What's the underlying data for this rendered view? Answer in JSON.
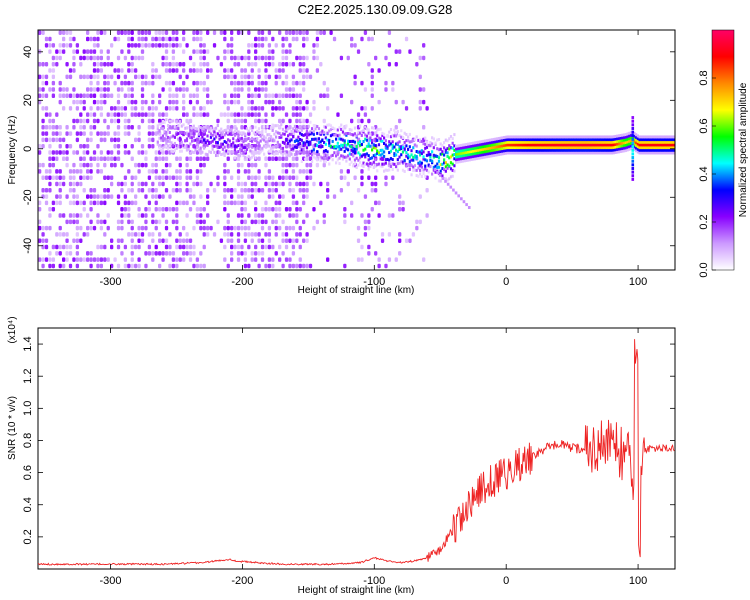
{
  "page": {
    "title": "C2E2.2025.130.09.09.G28"
  },
  "chart_data": [
    {
      "type": "heatmap",
      "xlabel": "Height of straight line (km)",
      "ylabel": "Frequency (Hz)",
      "xlim": [
        -355,
        128
      ],
      "ylim": [
        -50,
        49
      ],
      "xticks": [
        -300,
        -200,
        -100,
        0,
        100
      ],
      "yticks": [
        -40,
        -20,
        0,
        20,
        40
      ],
      "colorbar": {
        "label": "Normalized spectral amplitude",
        "range": [
          0,
          1
        ],
        "ticks": [
          0.0,
          0.2,
          0.4,
          0.6,
          0.8
        ],
        "tick_labels": [
          "0.0",
          "0.2",
          "0.4",
          "0.6",
          "0.8"
        ],
        "colormap": [
          "#ffffff",
          "#cc99ff",
          "#8800ff",
          "#0000ff",
          "#00ffff",
          "#00ff00",
          "#ffff00",
          "#ff8800",
          "#ff0000",
          "#ff0066"
        ]
      },
      "ridge": {
        "description_points_x": [
          -260,
          -240,
          -220,
          -200,
          -180,
          -160,
          -140,
          -120,
          -100,
          -80,
          -60,
          -50,
          -40,
          -30,
          -20,
          -10,
          0,
          20,
          40,
          60,
          80,
          90,
          95,
          100,
          128
        ],
        "center_freq": [
          5,
          4,
          3,
          1,
          3,
          3,
          2,
          1,
          -1,
          -2,
          -4,
          -6,
          -3,
          -2,
          -1,
          0,
          1,
          1,
          1,
          1,
          1,
          2,
          3,
          1,
          1
        ],
        "peak_amplitude": [
          0.15,
          0.2,
          0.25,
          0.2,
          0.1,
          0.3,
          0.4,
          0.45,
          0.5,
          0.45,
          0.4,
          0.55,
          0.6,
          0.65,
          0.7,
          0.75,
          0.85,
          0.9,
          0.92,
          0.93,
          0.9,
          0.7,
          0.75,
          0.9,
          0.9
        ]
      }
    },
    {
      "type": "line",
      "xlabel": "Height of straight line (km)",
      "ylabel": "SNR (10 * v/v)",
      "y_multiplier": "(x10⁴)",
      "xlim": [
        -355,
        128
      ],
      "ylim": [
        0,
        1.5
      ],
      "xticks": [
        -300,
        -200,
        -100,
        0,
        100
      ],
      "yticks": [
        0.2,
        0.4,
        0.6,
        0.8,
        1.0,
        1.2,
        1.4
      ],
      "ytick_labels": [
        "0.2",
        "0.4",
        "0.6",
        "0.8",
        "1.0",
        "1.2",
        "1.4"
      ],
      "color": "#ee2222",
      "series": [
        {
          "name": "",
          "x": [
            -355,
            -320,
            -290,
            -260,
            -230,
            -210,
            -205,
            -190,
            -170,
            -150,
            -130,
            -110,
            -100,
            -90,
            -80,
            -70,
            -60,
            -50,
            -40,
            -30,
            -20,
            -10,
            0,
            10,
            20,
            30,
            40,
            50,
            60,
            70,
            80,
            90,
            95,
            100,
            105,
            110,
            128
          ],
          "y": [
            0.03,
            0.03,
            0.03,
            0.03,
            0.04,
            0.06,
            0.05,
            0.04,
            0.03,
            0.03,
            0.03,
            0.04,
            0.07,
            0.05,
            0.04,
            0.05,
            0.07,
            0.12,
            0.25,
            0.38,
            0.48,
            0.55,
            0.6,
            0.65,
            0.7,
            0.75,
            0.78,
            0.75,
            0.75,
            0.76,
            0.78,
            0.7,
            0.65,
            0.4,
            0.75,
            0.75,
            0.75
          ]
        }
      ]
    }
  ]
}
